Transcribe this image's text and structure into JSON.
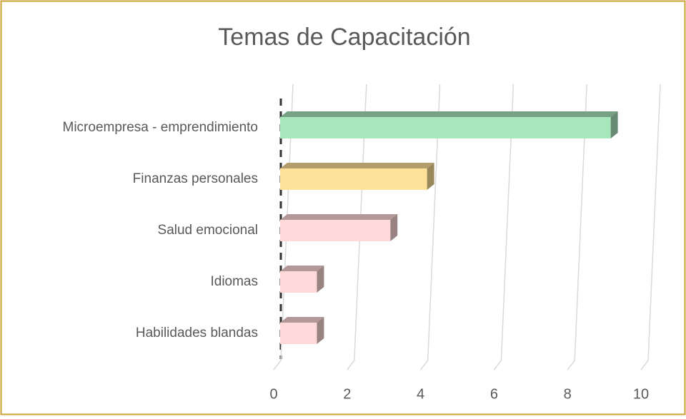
{
  "chart_data": {
    "type": "bar3d_horizontal",
    "title": "Temas de Capacitación",
    "categories": [
      "Microempresa - emprendimiento",
      "Finanzas personales",
      "Salud emocional",
      "Idiomas",
      "Habilidades blandas"
    ],
    "values": [
      9,
      4,
      3,
      1,
      1
    ],
    "colors": [
      "#a8e6bc",
      "#ffe299",
      "#ffd9d9",
      "#ffd9d9",
      "#ffd9d9"
    ],
    "xlim": [
      0,
      10
    ],
    "xticks": [
      0,
      2,
      4,
      6,
      8,
      10
    ],
    "grid": true
  }
}
